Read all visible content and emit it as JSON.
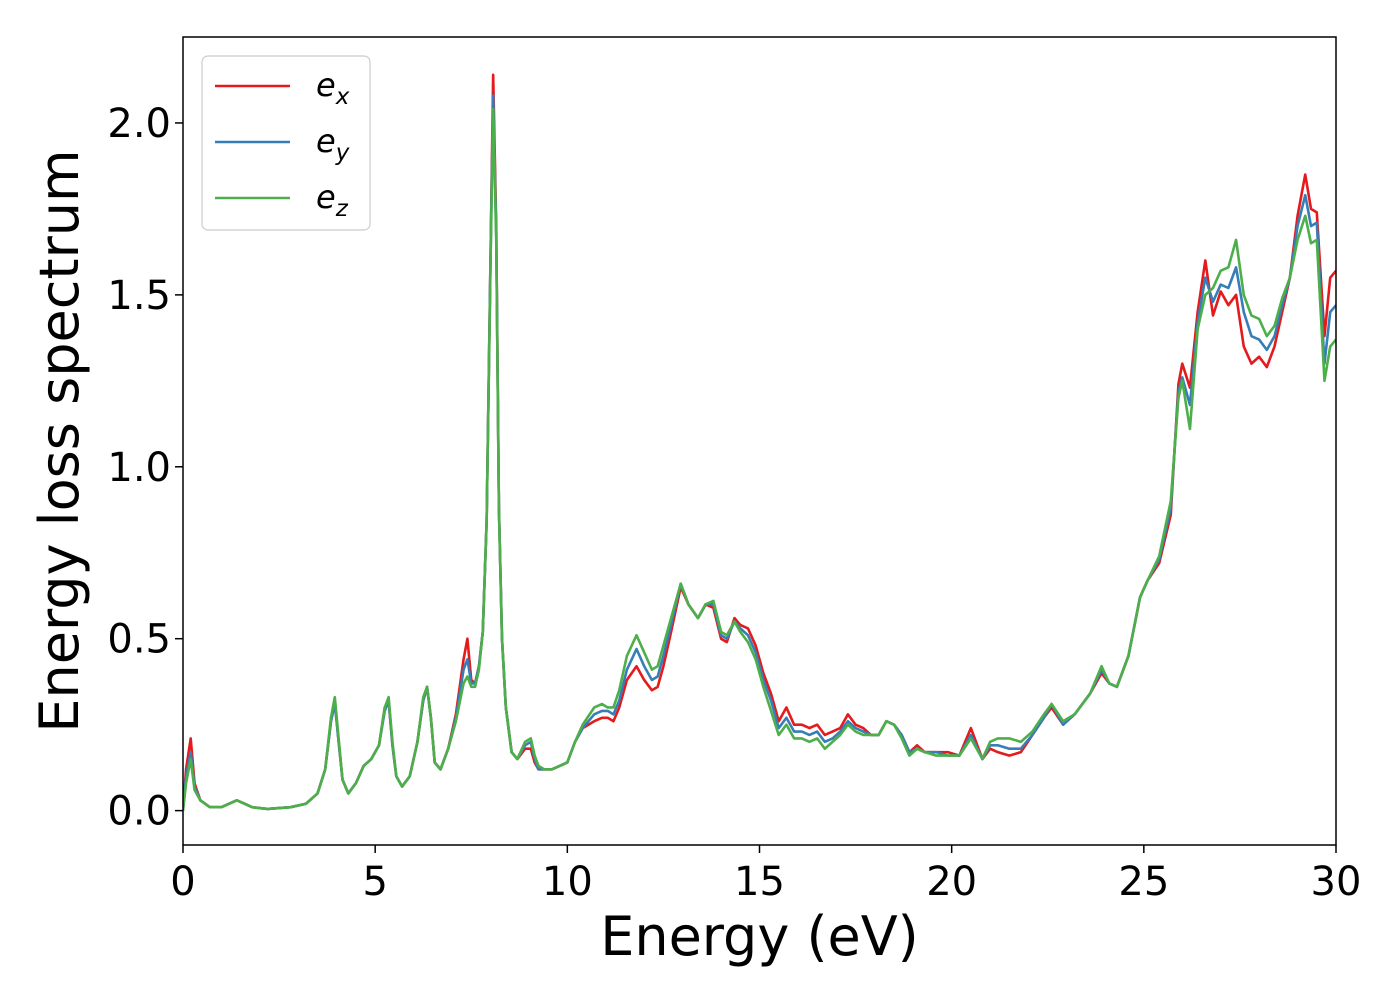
{
  "chart_data": {
    "type": "line",
    "xlabel": "Energy (eV)",
    "ylabel": "Energy loss spectrum",
    "xlim": [
      0,
      30
    ],
    "ylim": [
      -0.1,
      2.25
    ],
    "xticks": [
      0,
      5,
      10,
      15,
      20,
      25,
      30
    ],
    "xtick_labels": [
      "0",
      "5",
      "10",
      "15",
      "20",
      "25",
      "30"
    ],
    "yticks": [
      0.0,
      0.5,
      1.0,
      1.5,
      2.0
    ],
    "ytick_labels": [
      "0.0",
      "0.5",
      "1.0",
      "1.5",
      "2.0"
    ],
    "grid": false,
    "legend_position": "upper-left",
    "series": [
      {
        "name": "e_x",
        "legend_base": "e",
        "legend_sub": "x",
        "color": "#e41a1c",
        "x": [
          0,
          0.08,
          0.2,
          0.3,
          0.45,
          0.7,
          1.0,
          1.2,
          1.4,
          1.6,
          1.8,
          2.2,
          2.8,
          3.2,
          3.5,
          3.7,
          3.85,
          3.95,
          4.05,
          4.15,
          4.3,
          4.5,
          4.7,
          4.9,
          5.1,
          5.25,
          5.35,
          5.45,
          5.55,
          5.7,
          5.9,
          6.1,
          6.25,
          6.35,
          6.45,
          6.55,
          6.7,
          6.9,
          7.1,
          7.3,
          7.4,
          7.5,
          7.6,
          7.7,
          7.8,
          7.9,
          8.0,
          8.07,
          8.15,
          8.22,
          8.3,
          8.4,
          8.55,
          8.7,
          8.9,
          9.05,
          9.15,
          9.25,
          9.4,
          9.6,
          9.8,
          10.0,
          10.2,
          10.4,
          10.7,
          10.9,
          11.05,
          11.2,
          11.35,
          11.55,
          11.8,
          12.0,
          12.2,
          12.35,
          12.5,
          12.7,
          12.95,
          13.15,
          13.4,
          13.6,
          13.8,
          14.0,
          14.15,
          14.35,
          14.5,
          14.7,
          14.9,
          15.1,
          15.3,
          15.5,
          15.7,
          15.9,
          16.1,
          16.3,
          16.5,
          16.7,
          16.9,
          17.1,
          17.3,
          17.5,
          17.7,
          17.9,
          18.1,
          18.3,
          18.5,
          18.7,
          18.9,
          19.1,
          19.3,
          19.6,
          19.9,
          20.2,
          20.5,
          20.8,
          21.0,
          21.2,
          21.5,
          21.8,
          22.1,
          22.4,
          22.6,
          22.9,
          23.2,
          23.6,
          23.9,
          24.1,
          24.3,
          24.6,
          24.9,
          25.1,
          25.4,
          25.7,
          25.9,
          26.0,
          26.2,
          26.4,
          26.6,
          26.8,
          27.0,
          27.2,
          27.4,
          27.6,
          27.8,
          28.0,
          28.2,
          28.4,
          28.6,
          28.8,
          29.0,
          29.2,
          29.35,
          29.5,
          29.7,
          29.85,
          30.0
        ],
        "y": [
          0,
          0.12,
          0.21,
          0.08,
          0.03,
          0.01,
          0.01,
          0.02,
          0.03,
          0.02,
          0.01,
          0.005,
          0.01,
          0.02,
          0.05,
          0.12,
          0.26,
          0.32,
          0.2,
          0.09,
          0.05,
          0.08,
          0.13,
          0.15,
          0.19,
          0.3,
          0.32,
          0.19,
          0.1,
          0.07,
          0.1,
          0.2,
          0.32,
          0.36,
          0.27,
          0.14,
          0.12,
          0.18,
          0.28,
          0.44,
          0.5,
          0.38,
          0.37,
          0.42,
          0.52,
          0.84,
          1.6,
          2.14,
          1.7,
          0.88,
          0.5,
          0.3,
          0.17,
          0.15,
          0.18,
          0.18,
          0.14,
          0.12,
          0.12,
          0.12,
          0.13,
          0.14,
          0.2,
          0.24,
          0.26,
          0.27,
          0.27,
          0.26,
          0.3,
          0.38,
          0.42,
          0.38,
          0.35,
          0.36,
          0.42,
          0.52,
          0.65,
          0.6,
          0.56,
          0.6,
          0.59,
          0.5,
          0.49,
          0.56,
          0.54,
          0.53,
          0.48,
          0.4,
          0.34,
          0.26,
          0.3,
          0.25,
          0.25,
          0.24,
          0.25,
          0.22,
          0.23,
          0.24,
          0.28,
          0.25,
          0.24,
          0.22,
          0.22,
          0.26,
          0.25,
          0.22,
          0.17,
          0.19,
          0.17,
          0.17,
          0.17,
          0.16,
          0.24,
          0.15,
          0.18,
          0.17,
          0.16,
          0.17,
          0.22,
          0.27,
          0.3,
          0.25,
          0.28,
          0.34,
          0.4,
          0.37,
          0.36,
          0.45,
          0.62,
          0.67,
          0.72,
          0.86,
          1.24,
          1.3,
          1.23,
          1.45,
          1.6,
          1.44,
          1.51,
          1.47,
          1.5,
          1.35,
          1.3,
          1.32,
          1.29,
          1.35,
          1.45,
          1.55,
          1.73,
          1.85,
          1.75,
          1.74,
          1.38,
          1.55,
          1.57
        ]
      },
      {
        "name": "e_y",
        "legend_base": "e",
        "legend_sub": "y",
        "color": "#377eb8",
        "x": [
          0,
          0.08,
          0.2,
          0.3,
          0.45,
          0.7,
          1.0,
          1.2,
          1.4,
          1.6,
          1.8,
          2.2,
          2.8,
          3.2,
          3.5,
          3.7,
          3.85,
          3.95,
          4.05,
          4.15,
          4.3,
          4.5,
          4.7,
          4.9,
          5.1,
          5.25,
          5.35,
          5.45,
          5.55,
          5.7,
          5.9,
          6.1,
          6.25,
          6.35,
          6.45,
          6.55,
          6.7,
          6.9,
          7.1,
          7.3,
          7.4,
          7.5,
          7.6,
          7.7,
          7.8,
          7.9,
          8.0,
          8.07,
          8.15,
          8.22,
          8.3,
          8.4,
          8.55,
          8.7,
          8.9,
          9.05,
          9.15,
          9.25,
          9.4,
          9.6,
          9.8,
          10.0,
          10.2,
          10.4,
          10.7,
          10.9,
          11.05,
          11.2,
          11.35,
          11.55,
          11.8,
          12.0,
          12.2,
          12.35,
          12.5,
          12.7,
          12.95,
          13.15,
          13.4,
          13.6,
          13.8,
          14.0,
          14.15,
          14.35,
          14.5,
          14.7,
          14.9,
          15.1,
          15.3,
          15.5,
          15.7,
          15.9,
          16.1,
          16.3,
          16.5,
          16.7,
          16.9,
          17.1,
          17.3,
          17.5,
          17.7,
          17.9,
          18.1,
          18.3,
          18.5,
          18.7,
          18.9,
          19.1,
          19.3,
          19.6,
          19.9,
          20.2,
          20.5,
          20.8,
          21.0,
          21.2,
          21.5,
          21.8,
          22.1,
          22.4,
          22.6,
          22.9,
          23.2,
          23.6,
          23.9,
          24.1,
          24.3,
          24.6,
          24.9,
          25.1,
          25.4,
          25.7,
          25.9,
          26.0,
          26.2,
          26.4,
          26.6,
          26.8,
          27.0,
          27.2,
          27.4,
          27.6,
          27.8,
          28.0,
          28.2,
          28.4,
          28.6,
          28.8,
          29.0,
          29.2,
          29.35,
          29.5,
          29.7,
          29.85,
          30.0
        ],
        "y": [
          0,
          0.1,
          0.17,
          0.07,
          0.03,
          0.01,
          0.01,
          0.02,
          0.03,
          0.02,
          0.01,
          0.005,
          0.01,
          0.02,
          0.05,
          0.12,
          0.26,
          0.31,
          0.2,
          0.09,
          0.05,
          0.08,
          0.13,
          0.15,
          0.19,
          0.29,
          0.32,
          0.19,
          0.1,
          0.07,
          0.1,
          0.2,
          0.32,
          0.36,
          0.27,
          0.14,
          0.12,
          0.18,
          0.27,
          0.41,
          0.44,
          0.37,
          0.37,
          0.42,
          0.52,
          0.84,
          1.6,
          2.08,
          1.68,
          0.88,
          0.5,
          0.3,
          0.17,
          0.15,
          0.19,
          0.2,
          0.15,
          0.12,
          0.12,
          0.12,
          0.13,
          0.14,
          0.2,
          0.24,
          0.28,
          0.29,
          0.29,
          0.28,
          0.32,
          0.41,
          0.47,
          0.42,
          0.38,
          0.39,
          0.45,
          0.54,
          0.66,
          0.6,
          0.56,
          0.6,
          0.6,
          0.51,
          0.5,
          0.55,
          0.53,
          0.51,
          0.46,
          0.38,
          0.32,
          0.24,
          0.27,
          0.23,
          0.23,
          0.22,
          0.23,
          0.2,
          0.21,
          0.23,
          0.26,
          0.24,
          0.23,
          0.22,
          0.22,
          0.26,
          0.25,
          0.22,
          0.17,
          0.18,
          0.17,
          0.17,
          0.16,
          0.16,
          0.22,
          0.15,
          0.19,
          0.19,
          0.18,
          0.18,
          0.22,
          0.27,
          0.31,
          0.25,
          0.28,
          0.34,
          0.41,
          0.37,
          0.36,
          0.45,
          0.62,
          0.67,
          0.73,
          0.88,
          1.22,
          1.26,
          1.18,
          1.42,
          1.55,
          1.48,
          1.53,
          1.52,
          1.58,
          1.45,
          1.38,
          1.37,
          1.34,
          1.38,
          1.47,
          1.55,
          1.7,
          1.79,
          1.7,
          1.71,
          1.3,
          1.45,
          1.47
        ]
      },
      {
        "name": "e_z",
        "legend_base": "e",
        "legend_sub": "z",
        "color": "#4daf4a",
        "x": [
          0,
          0.08,
          0.2,
          0.3,
          0.45,
          0.7,
          1.0,
          1.2,
          1.4,
          1.6,
          1.8,
          2.2,
          2.8,
          3.2,
          3.5,
          3.7,
          3.85,
          3.95,
          4.05,
          4.15,
          4.3,
          4.5,
          4.7,
          4.9,
          5.1,
          5.25,
          5.35,
          5.45,
          5.55,
          5.7,
          5.9,
          6.1,
          6.25,
          6.35,
          6.45,
          6.55,
          6.7,
          6.9,
          7.1,
          7.3,
          7.4,
          7.5,
          7.6,
          7.7,
          7.8,
          7.9,
          8.0,
          8.07,
          8.15,
          8.22,
          8.3,
          8.4,
          8.55,
          8.7,
          8.9,
          9.05,
          9.15,
          9.25,
          9.4,
          9.6,
          9.8,
          10.0,
          10.2,
          10.4,
          10.7,
          10.9,
          11.05,
          11.2,
          11.35,
          11.55,
          11.8,
          12.0,
          12.2,
          12.35,
          12.5,
          12.7,
          12.95,
          13.15,
          13.4,
          13.6,
          13.8,
          14.0,
          14.15,
          14.35,
          14.5,
          14.7,
          14.9,
          15.1,
          15.3,
          15.5,
          15.7,
          15.9,
          16.1,
          16.3,
          16.5,
          16.7,
          16.9,
          17.1,
          17.3,
          17.5,
          17.7,
          17.9,
          18.1,
          18.3,
          18.5,
          18.7,
          18.9,
          19.1,
          19.3,
          19.6,
          19.9,
          20.2,
          20.5,
          20.8,
          21.0,
          21.2,
          21.5,
          21.8,
          22.1,
          22.4,
          22.6,
          22.9,
          23.2,
          23.6,
          23.9,
          24.1,
          24.3,
          24.6,
          24.9,
          25.1,
          25.4,
          25.7,
          25.9,
          26.0,
          26.2,
          26.4,
          26.6,
          26.8,
          27.0,
          27.2,
          27.4,
          27.6,
          27.8,
          28.0,
          28.2,
          28.4,
          28.6,
          28.8,
          29.0,
          29.2,
          29.35,
          29.5,
          29.7,
          29.85,
          30.0
        ],
        "y": [
          0,
          0.08,
          0.15,
          0.06,
          0.03,
          0.01,
          0.01,
          0.02,
          0.03,
          0.02,
          0.01,
          0.005,
          0.01,
          0.02,
          0.05,
          0.12,
          0.27,
          0.33,
          0.21,
          0.09,
          0.05,
          0.08,
          0.13,
          0.15,
          0.19,
          0.3,
          0.33,
          0.2,
          0.1,
          0.07,
          0.1,
          0.2,
          0.33,
          0.36,
          0.27,
          0.14,
          0.12,
          0.18,
          0.26,
          0.37,
          0.39,
          0.36,
          0.36,
          0.41,
          0.52,
          0.84,
          1.58,
          2.04,
          1.66,
          0.88,
          0.5,
          0.3,
          0.17,
          0.15,
          0.2,
          0.21,
          0.16,
          0.13,
          0.12,
          0.12,
          0.13,
          0.14,
          0.2,
          0.25,
          0.3,
          0.31,
          0.3,
          0.3,
          0.35,
          0.45,
          0.51,
          0.46,
          0.41,
          0.42,
          0.48,
          0.56,
          0.66,
          0.6,
          0.56,
          0.6,
          0.61,
          0.52,
          0.51,
          0.55,
          0.52,
          0.49,
          0.44,
          0.36,
          0.29,
          0.22,
          0.25,
          0.21,
          0.21,
          0.2,
          0.21,
          0.18,
          0.2,
          0.22,
          0.25,
          0.23,
          0.22,
          0.22,
          0.22,
          0.26,
          0.25,
          0.21,
          0.16,
          0.18,
          0.17,
          0.16,
          0.16,
          0.16,
          0.21,
          0.15,
          0.2,
          0.21,
          0.21,
          0.2,
          0.23,
          0.28,
          0.31,
          0.26,
          0.28,
          0.34,
          0.42,
          0.37,
          0.36,
          0.45,
          0.62,
          0.67,
          0.74,
          0.9,
          1.2,
          1.25,
          1.11,
          1.4,
          1.5,
          1.52,
          1.57,
          1.58,
          1.66,
          1.5,
          1.44,
          1.43,
          1.38,
          1.41,
          1.49,
          1.55,
          1.66,
          1.73,
          1.65,
          1.66,
          1.25,
          1.35,
          1.37
        ]
      }
    ]
  }
}
